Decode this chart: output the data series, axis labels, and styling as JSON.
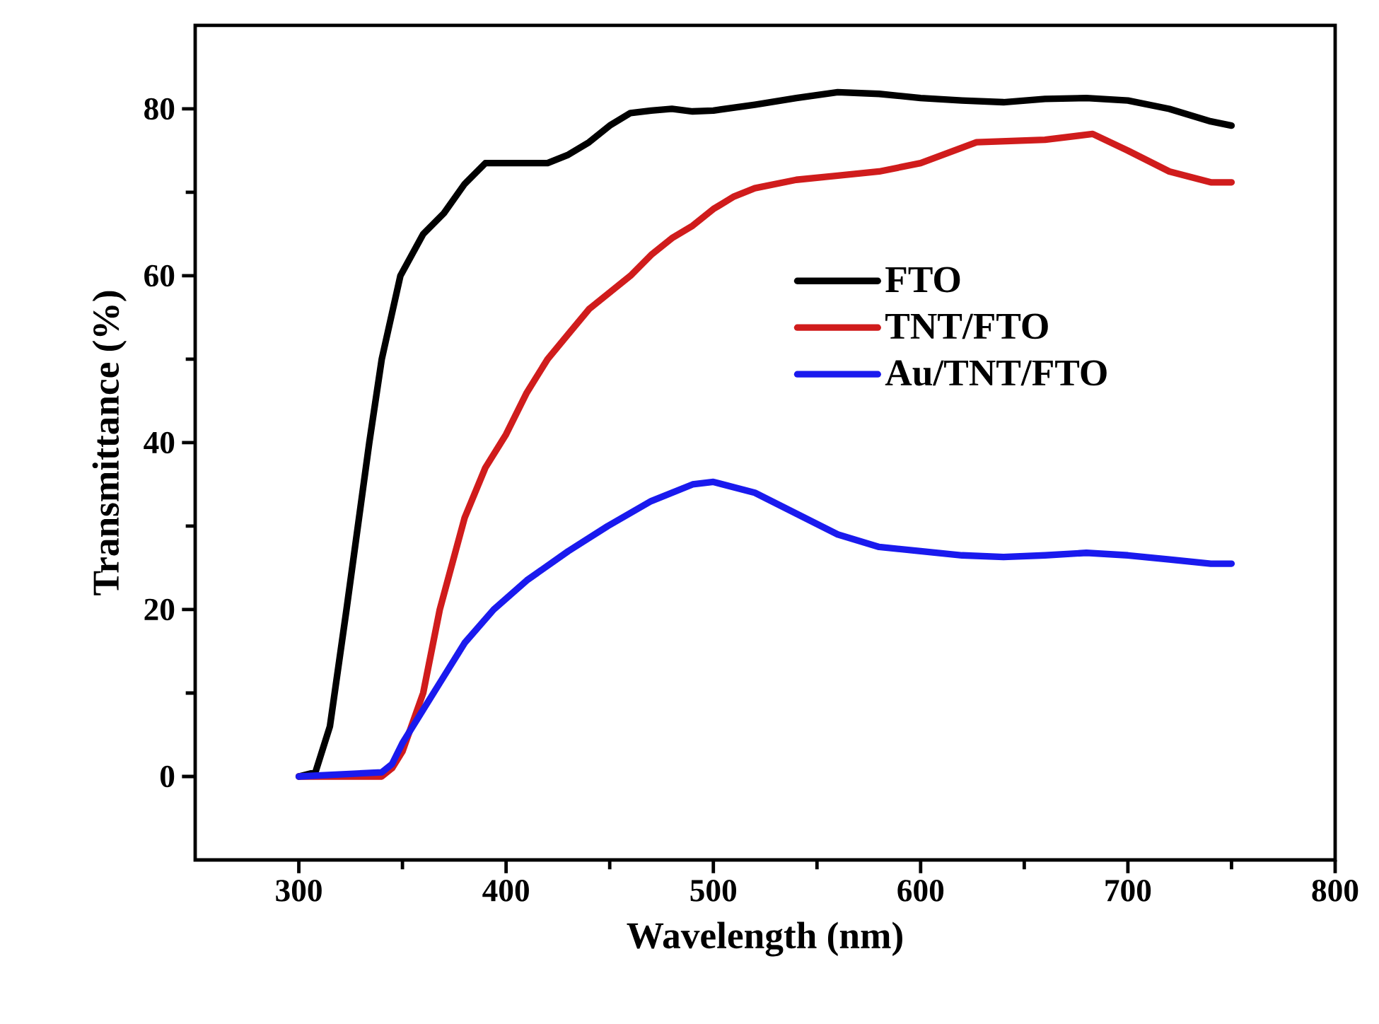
{
  "chart_data": {
    "type": "line",
    "xlabel": "Wavelength (nm)",
    "ylabel": "Transmittance (%)",
    "xlim": [
      250,
      800
    ],
    "xticks": [
      300,
      400,
      500,
      600,
      700,
      800
    ],
    "ylim": [
      -10,
      90
    ],
    "yticks": [
      0,
      20,
      40,
      60,
      80
    ],
    "legend": "right",
    "grid": false,
    "marker": "none",
    "line_style": "solid",
    "series": [
      {
        "name": "FTO",
        "color": "#000000",
        "x": [
          300,
          308,
          315,
          323,
          334,
          340,
          349,
          360,
          370,
          380,
          390,
          400,
          410,
          420,
          430,
          440,
          450,
          460,
          470,
          480,
          490,
          500,
          520,
          540,
          560,
          580,
          600,
          620,
          640,
          660,
          680,
          700,
          720,
          740,
          750
        ],
        "values": [
          0,
          0.5,
          6,
          20,
          40,
          50,
          60,
          65,
          67.5,
          71,
          73.5,
          73.5,
          73.5,
          73.5,
          74.5,
          76,
          78,
          79.5,
          79.8,
          80,
          79.7,
          79.8,
          80.5,
          81.3,
          82,
          81.8,
          81.3,
          81,
          80.8,
          81.2,
          81.3,
          81,
          80,
          78.5,
          78
        ]
      },
      {
        "name": "TNT/FTO",
        "color": "#d01c1c",
        "x": [
          300,
          340,
          345,
          350,
          360,
          368,
          380,
          390,
          400,
          410,
          420,
          430,
          440,
          450,
          460,
          470,
          480,
          490,
          500,
          510,
          520,
          540,
          560,
          580,
          600,
          627,
          660,
          683,
          700,
          720,
          740,
          750
        ],
        "values": [
          0,
          0,
          1,
          3,
          10,
          20,
          31,
          37,
          41,
          46,
          50,
          53,
          56,
          58,
          60,
          62.5,
          64.5,
          66,
          68,
          69.5,
          70.5,
          71.5,
          72,
          72.5,
          73.5,
          76,
          76.3,
          77,
          75,
          72.5,
          71.2,
          71.2
        ]
      },
      {
        "name": "Au/TNT/FTO",
        "color": "#1a1aee",
        "x": [
          300,
          340,
          345,
          350,
          360,
          370,
          380,
          394,
          410,
          430,
          449,
          470,
          490,
          500,
          520,
          540,
          560,
          580,
          600,
          620,
          640,
          660,
          680,
          700,
          720,
          740,
          750
        ],
        "values": [
          0,
          0.5,
          1.5,
          4,
          8,
          12,
          16,
          20,
          23.5,
          27,
          30,
          33,
          35,
          35.3,
          34,
          31.5,
          29,
          27.5,
          27,
          26.5,
          26.3,
          26.5,
          26.8,
          26.5,
          26,
          25.5,
          25.5
        ]
      }
    ]
  }
}
